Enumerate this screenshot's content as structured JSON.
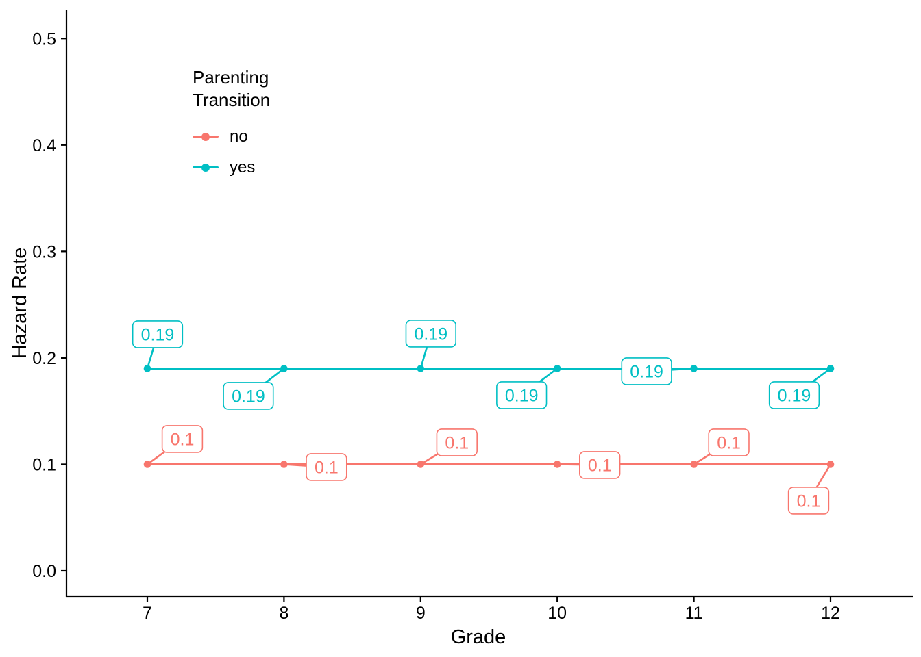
{
  "figure": {
    "background": "#ffffff",
    "text_color": "#000000"
  },
  "chart_data": {
    "type": "line",
    "title": "",
    "xlabel": "Grade",
    "ylabel": "Hazard Rate",
    "x": [
      7,
      8,
      9,
      10,
      11,
      12
    ],
    "x_tick_labels": [
      "7",
      "8",
      "9",
      "10",
      "11",
      "12"
    ],
    "y_ticks": [
      0.0,
      0.1,
      0.2,
      0.3,
      0.4,
      0.5
    ],
    "y_tick_labels": [
      "0.0",
      "0.1",
      "0.2",
      "0.3",
      "0.4",
      "0.5"
    ],
    "xlim": [
      6.41,
      12.6
    ],
    "ylim": [
      -0.024,
      0.527
    ],
    "grid": false,
    "axis_color": "#000000",
    "legend": {
      "title": "Parenting Transition",
      "position": "inside-top-left",
      "items": [
        {
          "label": "no",
          "color": "#F8766D"
        },
        {
          "label": "yes",
          "color": "#00BFC4"
        }
      ]
    },
    "series": [
      {
        "name": "no",
        "color": "#F8766D",
        "values": [
          0.1,
          0.1,
          0.1,
          0.1,
          0.1,
          0.1
        ],
        "point_labels": [
          "0.1",
          "0.1",
          "0.1",
          "0.1",
          "0.1",
          "0.1"
        ],
        "label_offsets": [
          {
            "dx": 51,
            "dy": -37
          },
          {
            "dx": 62,
            "dy": 4
          },
          {
            "dx": 53,
            "dy": -32
          },
          {
            "dx": 62,
            "dy": 1
          },
          {
            "dx": 51,
            "dy": -32
          },
          {
            "dx": -32,
            "dy": 53
          }
        ]
      },
      {
        "name": "yes",
        "color": "#00BFC4",
        "values": [
          0.19,
          0.19,
          0.19,
          0.19,
          0.19,
          0.19
        ],
        "point_labels": [
          "0.19",
          "0.19",
          "0.19",
          "0.19",
          "0.19",
          "0.19"
        ],
        "label_offsets": [
          {
            "dx": 15,
            "dy": -50
          },
          {
            "dx": -52,
            "dy": 40
          },
          {
            "dx": 15,
            "dy": -51
          },
          {
            "dx": -52,
            "dy": 39
          },
          {
            "dx": -69,
            "dy": 4
          },
          {
            "dx": -53,
            "dy": 39
          }
        ]
      }
    ]
  }
}
